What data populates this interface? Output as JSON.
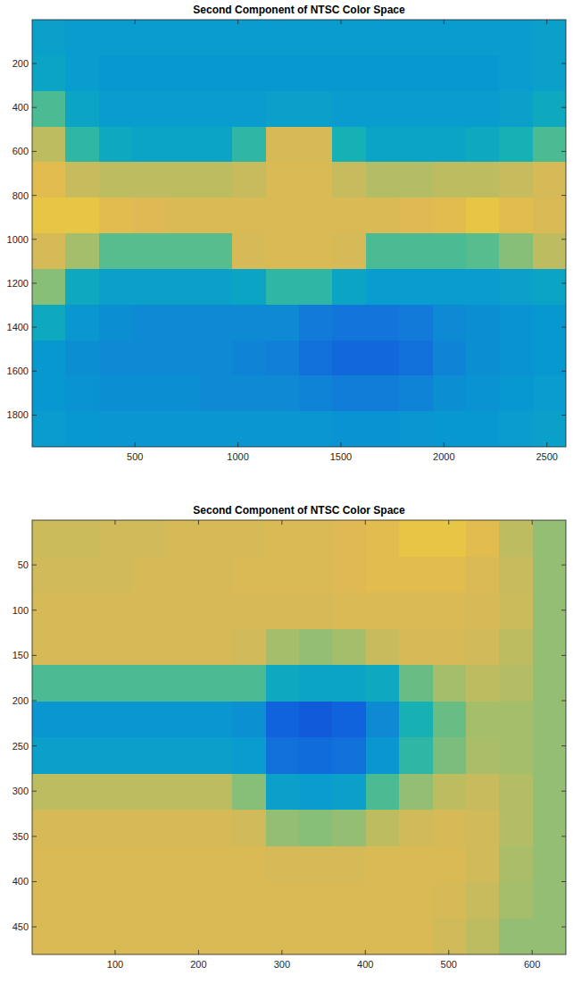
{
  "chart_data": [
    {
      "type": "heatmap",
      "title": "Second Component of NTSC Color Space",
      "color": "parula",
      "xlim": [
        0.5,
        2592.5
      ],
      "ylim": [
        0.5,
        1944.5
      ],
      "xticks": [
        500,
        1000,
        1500,
        2000,
        2500
      ],
      "yticks": [
        200,
        400,
        600,
        800,
        1000,
        1200,
        1400,
        1600,
        1800
      ],
      "color_range": [
        0,
        1
      ],
      "cells": [
        [
          0.4,
          0.38,
          0.38,
          0.38,
          0.38,
          0.38,
          0.38,
          0.38,
          0.38,
          0.38,
          0.38,
          0.38,
          0.38,
          0.38,
          0.38,
          0.4
        ],
        [
          0.42,
          0.38,
          0.36,
          0.36,
          0.36,
          0.36,
          0.36,
          0.36,
          0.36,
          0.36,
          0.36,
          0.36,
          0.36,
          0.36,
          0.38,
          0.4
        ],
        [
          0.6,
          0.42,
          0.38,
          0.38,
          0.38,
          0.38,
          0.38,
          0.4,
          0.4,
          0.38,
          0.38,
          0.38,
          0.38,
          0.38,
          0.4,
          0.45
        ],
        [
          0.8,
          0.55,
          0.45,
          0.42,
          0.42,
          0.42,
          0.55,
          0.85,
          0.85,
          0.5,
          0.42,
          0.42,
          0.42,
          0.45,
          0.5,
          0.6
        ],
        [
          0.88,
          0.82,
          0.8,
          0.8,
          0.8,
          0.8,
          0.82,
          0.86,
          0.86,
          0.82,
          0.78,
          0.78,
          0.8,
          0.8,
          0.82,
          0.85
        ],
        [
          0.9,
          0.9,
          0.88,
          0.87,
          0.86,
          0.86,
          0.86,
          0.86,
          0.86,
          0.86,
          0.86,
          0.87,
          0.88,
          0.9,
          0.88,
          0.86
        ],
        [
          0.85,
          0.75,
          0.62,
          0.62,
          0.62,
          0.62,
          0.85,
          0.86,
          0.86,
          0.85,
          0.6,
          0.6,
          0.6,
          0.62,
          0.7,
          0.8
        ],
        [
          0.7,
          0.45,
          0.4,
          0.4,
          0.4,
          0.4,
          0.42,
          0.55,
          0.55,
          0.42,
          0.38,
          0.38,
          0.38,
          0.38,
          0.4,
          0.42
        ],
        [
          0.45,
          0.35,
          0.32,
          0.3,
          0.3,
          0.3,
          0.3,
          0.3,
          0.24,
          0.22,
          0.22,
          0.24,
          0.3,
          0.32,
          0.34,
          0.36
        ],
        [
          0.36,
          0.32,
          0.3,
          0.3,
          0.3,
          0.3,
          0.28,
          0.26,
          0.2,
          0.17,
          0.17,
          0.2,
          0.28,
          0.32,
          0.34,
          0.36
        ],
        [
          0.36,
          0.34,
          0.32,
          0.32,
          0.32,
          0.3,
          0.3,
          0.3,
          0.28,
          0.25,
          0.25,
          0.28,
          0.32,
          0.34,
          0.36,
          0.38
        ],
        [
          0.38,
          0.36,
          0.35,
          0.35,
          0.35,
          0.35,
          0.35,
          0.35,
          0.35,
          0.34,
          0.34,
          0.35,
          0.36,
          0.36,
          0.38,
          0.4
        ]
      ]
    },
    {
      "type": "heatmap",
      "title": "Second Component of NTSC Color Space",
      "color": "parula",
      "xlim": [
        0.5,
        640.5
      ],
      "ylim": [
        0.5,
        480.5
      ],
      "xticks": [
        100,
        200,
        300,
        400,
        500,
        600
      ],
      "yticks": [
        50,
        100,
        150,
        200,
        250,
        300,
        350,
        400,
        450
      ],
      "color_range": [
        0,
        1
      ],
      "cells": [
        [
          0.83,
          0.83,
          0.84,
          0.84,
          0.85,
          0.85,
          0.85,
          0.86,
          0.86,
          0.87,
          0.88,
          0.9,
          0.9,
          0.88,
          0.8,
          0.72
        ],
        [
          0.84,
          0.84,
          0.84,
          0.85,
          0.85,
          0.85,
          0.86,
          0.86,
          0.86,
          0.87,
          0.88,
          0.88,
          0.88,
          0.86,
          0.82,
          0.72
        ],
        [
          0.85,
          0.85,
          0.85,
          0.85,
          0.85,
          0.85,
          0.85,
          0.85,
          0.85,
          0.86,
          0.86,
          0.86,
          0.86,
          0.85,
          0.83,
          0.72
        ],
        [
          0.85,
          0.85,
          0.85,
          0.85,
          0.85,
          0.85,
          0.84,
          0.75,
          0.72,
          0.75,
          0.82,
          0.85,
          0.85,
          0.84,
          0.8,
          0.72
        ],
        [
          0.6,
          0.6,
          0.6,
          0.6,
          0.6,
          0.6,
          0.6,
          0.45,
          0.42,
          0.42,
          0.45,
          0.65,
          0.75,
          0.8,
          0.78,
          0.72
        ],
        [
          0.35,
          0.35,
          0.35,
          0.35,
          0.35,
          0.35,
          0.33,
          0.15,
          0.12,
          0.15,
          0.3,
          0.5,
          0.65,
          0.75,
          0.75,
          0.72
        ],
        [
          0.4,
          0.4,
          0.4,
          0.4,
          0.4,
          0.4,
          0.38,
          0.2,
          0.18,
          0.2,
          0.35,
          0.55,
          0.68,
          0.76,
          0.75,
          0.72
        ],
        [
          0.8,
          0.8,
          0.8,
          0.8,
          0.8,
          0.8,
          0.7,
          0.4,
          0.38,
          0.4,
          0.6,
          0.72,
          0.8,
          0.82,
          0.78,
          0.72
        ],
        [
          0.85,
          0.85,
          0.85,
          0.85,
          0.85,
          0.85,
          0.84,
          0.72,
          0.7,
          0.72,
          0.8,
          0.84,
          0.85,
          0.84,
          0.78,
          0.72
        ],
        [
          0.86,
          0.86,
          0.86,
          0.86,
          0.86,
          0.86,
          0.86,
          0.85,
          0.85,
          0.85,
          0.86,
          0.86,
          0.86,
          0.84,
          0.76,
          0.72
        ],
        [
          0.86,
          0.86,
          0.86,
          0.86,
          0.86,
          0.86,
          0.86,
          0.86,
          0.86,
          0.86,
          0.86,
          0.86,
          0.85,
          0.82,
          0.75,
          0.72
        ],
        [
          0.86,
          0.86,
          0.86,
          0.86,
          0.86,
          0.86,
          0.86,
          0.86,
          0.86,
          0.86,
          0.86,
          0.86,
          0.84,
          0.8,
          0.72,
          0.72
        ]
      ]
    }
  ]
}
